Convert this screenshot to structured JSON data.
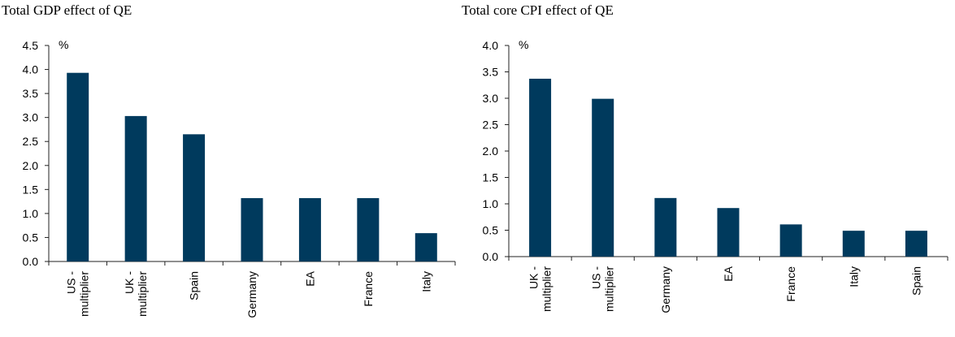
{
  "chart_data": [
    {
      "type": "bar",
      "title": "Total GDP effect of QE",
      "unit_label": "%",
      "categories": [
        "US - multiplier",
        "UK - multiplier",
        "Spain",
        "Germany",
        "EA",
        "France",
        "Italy"
      ],
      "category_lines": [
        [
          "US -",
          "multiplier"
        ],
        [
          "UK -",
          "multiplier"
        ],
        [
          "Spain"
        ],
        [
          "Germany"
        ],
        [
          "EA"
        ],
        [
          "France"
        ],
        [
          "Italy"
        ]
      ],
      "values": [
        3.93,
        3.03,
        2.65,
        1.32,
        1.32,
        1.32,
        0.59
      ],
      "ylim": [
        0,
        4.5
      ],
      "ytick_labels": [
        "0.0",
        "0.5",
        "1.0",
        "1.5",
        "2.0",
        "2.5",
        "3.0",
        "3.5",
        "4.0",
        "4.5"
      ],
      "bar_color": "#003a5d",
      "grid": false,
      "xlabel": "",
      "ylabel": ""
    },
    {
      "type": "bar",
      "title": "Total core CPI effect of QE",
      "unit_label": "%",
      "categories": [
        "UK - multiplier",
        "US - multiplier",
        "Germany",
        "EA",
        "France",
        "Italy",
        "Spain"
      ],
      "category_lines": [
        [
          "UK -",
          "multiplier"
        ],
        [
          "US -",
          "multiplier"
        ],
        [
          "Germany"
        ],
        [
          "EA"
        ],
        [
          "France"
        ],
        [
          "Italy"
        ],
        [
          "Spain"
        ]
      ],
      "values": [
        3.37,
        2.99,
        1.11,
        0.92,
        0.61,
        0.49,
        0.49
      ],
      "ylim": [
        0,
        4.0
      ],
      "ytick_labels": [
        "0.0",
        "0.5",
        "1.0",
        "1.5",
        "2.0",
        "2.5",
        "3.0",
        "3.5",
        "4.0"
      ],
      "bar_color": "#003a5d",
      "grid": false,
      "xlabel": "",
      "ylabel": ""
    }
  ]
}
